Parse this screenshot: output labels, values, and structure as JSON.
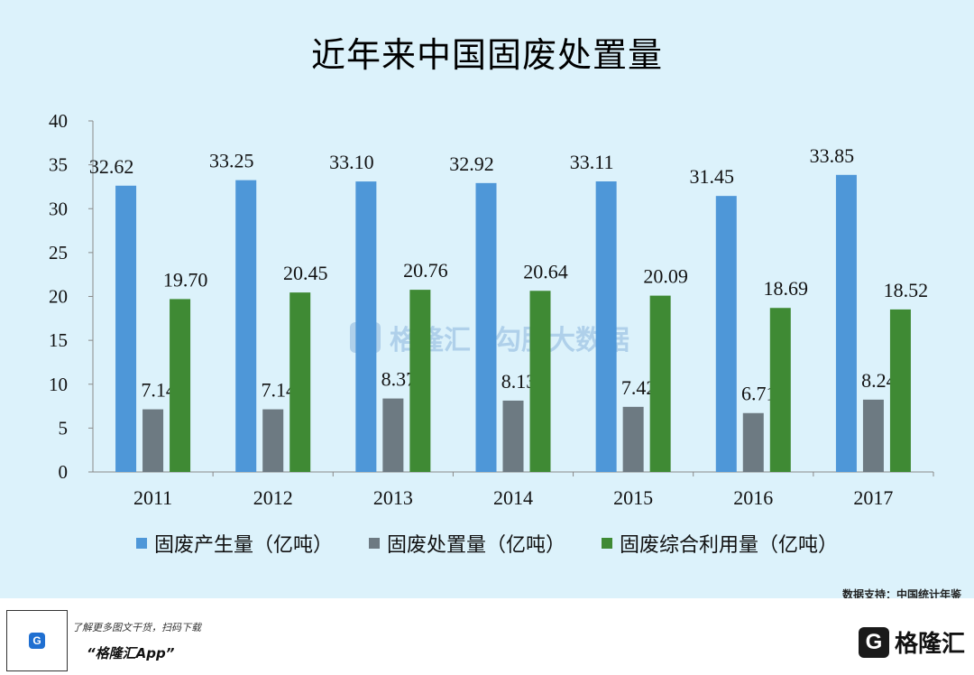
{
  "title": "近年来中国固废处置量",
  "source": "数据支持：中国统计年鉴",
  "watermark": {
    "icon": "G",
    "text1": "格隆汇",
    "text2": "勾股大数据"
  },
  "footer": {
    "qr_icon": "G",
    "promo": "了解更多图文干货，扫码下载",
    "app_name": "“格隆汇App”",
    "brand_icon": "G",
    "brand_name": "格隆汇"
  },
  "colors": {
    "generated": "#4e97d8",
    "disposed": "#6d7a82",
    "utilized": "#3f8a34",
    "background": "#dcf2fb"
  },
  "chart_data": {
    "type": "bar",
    "title": "近年来中国固废处置量",
    "xlabel": "",
    "ylabel": "",
    "ylim": [
      0,
      40
    ],
    "yticks": [
      0,
      5,
      10,
      15,
      20,
      25,
      30,
      35,
      40
    ],
    "ytick_labels": [
      "0",
      "5",
      "10",
      "15",
      "20",
      "25",
      "30",
      "35",
      "40"
    ],
    "categories": [
      "2011",
      "2012",
      "2013",
      "2014",
      "2015",
      "2016",
      "2017"
    ],
    "series": [
      {
        "name": "固废产生量（亿吨）",
        "values": [
          32.62,
          33.25,
          33.1,
          32.92,
          33.11,
          31.45,
          33.85
        ],
        "labels": [
          "32.62",
          "33.25",
          "33.10",
          "32.92",
          "33.11",
          "31.45",
          "33.85"
        ]
      },
      {
        "name": "固废处置量（亿吨）",
        "values": [
          7.14,
          7.14,
          8.37,
          8.13,
          7.42,
          6.71,
          8.24
        ],
        "labels": [
          "7.14",
          "7.14",
          "8.37",
          "8.13",
          "7.42",
          "6.71",
          "8.24"
        ]
      },
      {
        "name": "固废综合利用量（亿吨）",
        "values": [
          19.7,
          20.45,
          20.76,
          20.64,
          20.09,
          18.69,
          18.52
        ],
        "labels": [
          "19.70",
          "20.45",
          "20.76",
          "20.64",
          "20.09",
          "18.69",
          "18.52"
        ]
      }
    ],
    "legend_position": "bottom",
    "grid": false
  }
}
